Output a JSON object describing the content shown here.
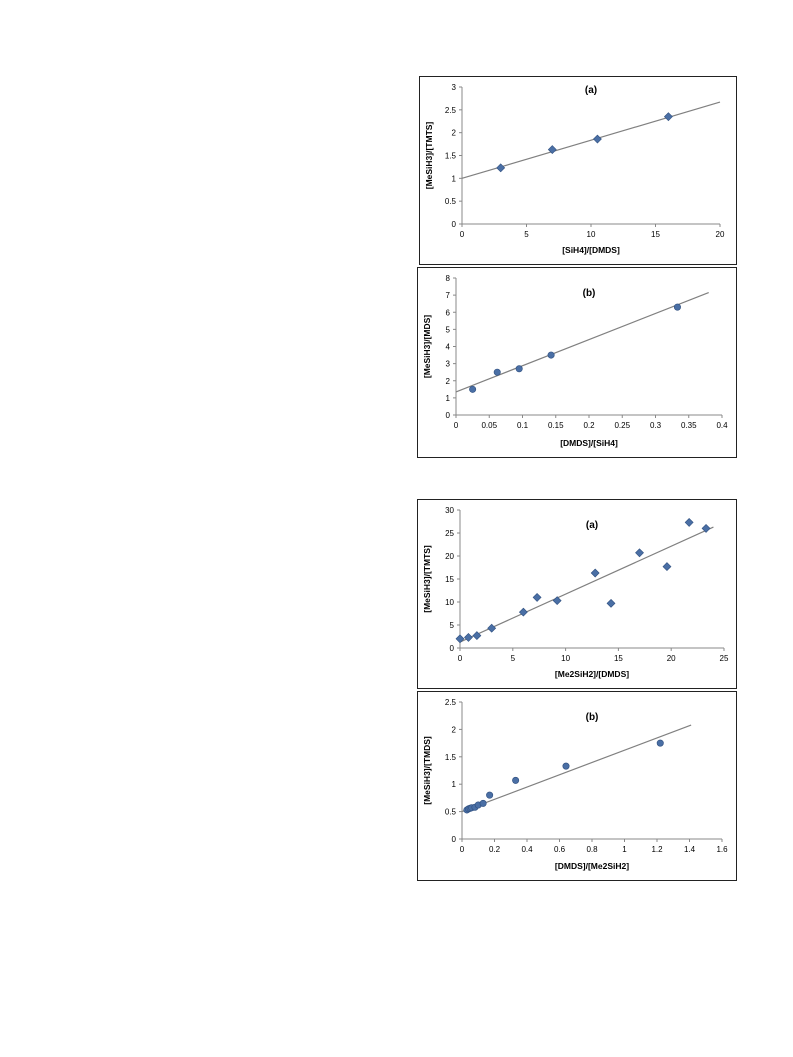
{
  "chart_data": [
    {
      "type": "scatter",
      "panel_label": "(a)",
      "xlabel": "[SiH4]/[DMDS]",
      "ylabel": "[MeSiH3]/[TMTS]",
      "xlim": [
        0,
        20
      ],
      "ylim": [
        0,
        3
      ],
      "xticks": [
        "0",
        "5",
        "10",
        "15",
        "20"
      ],
      "yticks": [
        "0",
        "0.5",
        "1",
        "1.5",
        "2",
        "2.5",
        "3"
      ],
      "marker": "diamond",
      "marker_color": "#4a6fa5",
      "line_color": "#808080",
      "x": [
        3.0,
        7.0,
        10.5,
        16.0
      ],
      "y": [
        1.23,
        1.63,
        1.86,
        2.35
      ],
      "trendline": {
        "x": [
          0,
          20
        ],
        "y": [
          1.0,
          2.67
        ]
      },
      "grid": false
    },
    {
      "type": "scatter",
      "panel_label": "(b)",
      "xlabel": "[DMDS]/[SiH4]",
      "ylabel": "[MeSiH3]/[MDS]",
      "xlim": [
        0,
        0.4
      ],
      "ylim": [
        0,
        8
      ],
      "xticks": [
        "0",
        "0.05",
        "0.1",
        "0.15",
        "0.2",
        "0.25",
        "0.3",
        "0.35",
        "0.4"
      ],
      "yticks": [
        "0",
        "1",
        "2",
        "3",
        "4",
        "5",
        "6",
        "7",
        "8"
      ],
      "marker": "circle",
      "marker_color": "#4a6fa5",
      "line_color": "#808080",
      "x": [
        0.025,
        0.062,
        0.095,
        0.143,
        0.333
      ],
      "y": [
        1.5,
        2.5,
        2.7,
        3.5,
        6.3
      ],
      "trendline": {
        "x": [
          0,
          0.38
        ],
        "y": [
          1.35,
          7.15
        ]
      },
      "grid": false
    },
    {
      "type": "scatter",
      "panel_label": "(a)",
      "xlabel": "[Me2SiH2]/[DMDS]",
      "ylabel": "[MeSiH3]/[TMTS]",
      "xlim": [
        0,
        25
      ],
      "ylim": [
        0,
        30
      ],
      "xticks": [
        "0",
        "5",
        "10",
        "15",
        "20",
        "25"
      ],
      "yticks": [
        "0",
        "5",
        "10",
        "15",
        "20",
        "25",
        "30"
      ],
      "marker": "diamond",
      "marker_color": "#4a6fa5",
      "line_color": "#808080",
      "x": [
        0.0,
        0.8,
        1.6,
        3.0,
        6.0,
        7.3,
        9.2,
        12.8,
        14.3,
        17.0,
        19.6,
        21.7,
        23.3
      ],
      "y": [
        2.0,
        2.3,
        2.7,
        4.3,
        7.8,
        11.0,
        10.3,
        16.3,
        9.7,
        20.7,
        17.7,
        27.3,
        26.0
      ],
      "trendline": {
        "x": [
          0,
          24
        ],
        "y": [
          1.3,
          26.3
        ]
      },
      "grid": false
    },
    {
      "type": "scatter",
      "panel_label": "(b)",
      "xlabel": "[DMDS]/[Me2SiH2]",
      "ylabel": "[MeSiH3]/[TMDS]",
      "xlim": [
        0,
        1.6
      ],
      "ylim": [
        0,
        2.5
      ],
      "xticks": [
        "0",
        "0.2",
        "0.4",
        "0.6",
        "0.8",
        "1",
        "1.2",
        "1.4",
        "1.6"
      ],
      "yticks": [
        "0",
        "0.5",
        "1",
        "1.5",
        "2",
        "2.5"
      ],
      "marker": "circle",
      "marker_color": "#4a6fa5",
      "line_color": "#808080",
      "x": [
        0.03,
        0.04,
        0.05,
        0.06,
        0.08,
        0.1,
        0.13,
        0.17,
        0.33,
        0.64,
        1.22
      ],
      "y": [
        0.53,
        0.55,
        0.56,
        0.57,
        0.58,
        0.62,
        0.65,
        0.8,
        1.07,
        1.33,
        1.75
      ],
      "trendline": {
        "x": [
          0,
          1.41
        ],
        "y": [
          0.5,
          2.08
        ]
      },
      "grid": false
    }
  ]
}
